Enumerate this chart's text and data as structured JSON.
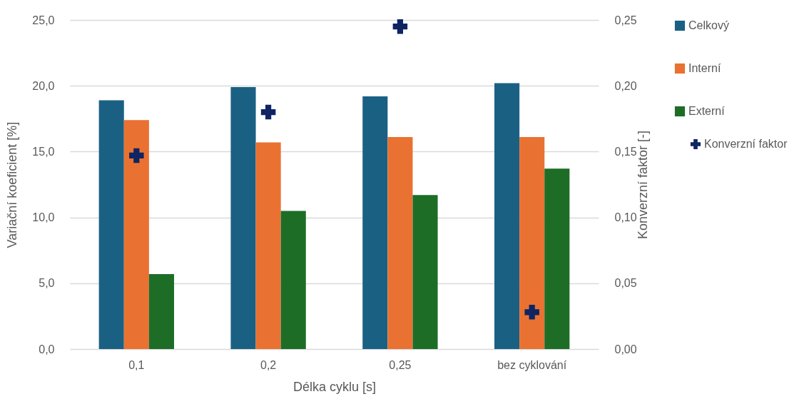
{
  "chart_data": {
    "type": "bar",
    "xlabel": "Délka cyklu [s]",
    "ylabel": "Variační koeficient [%]",
    "y2label": "Konverzní faktor [-]",
    "categories": [
      "0,1",
      "0,2",
      "0,25",
      "bez cyklování"
    ],
    "series": [
      {
        "name": "Celkový",
        "color": "#1a6083",
        "values": [
          18.9,
          19.9,
          19.2,
          20.2
        ]
      },
      {
        "name": "Interní",
        "color": "#e97132",
        "values": [
          17.4,
          15.7,
          16.1,
          16.1
        ]
      },
      {
        "name": "Externí",
        "color": "#1d6d27",
        "values": [
          5.7,
          10.5,
          11.7,
          13.7
        ]
      },
      {
        "name": "Konverzní faktor",
        "color": "#0e2463",
        "type": "scatter",
        "axis": "y2",
        "marker": "cross",
        "values": [
          0.147,
          0.18,
          0.245,
          0.028
        ]
      }
    ],
    "ylim": [
      0,
      25
    ],
    "yticks": [
      {
        "value": 0,
        "label": "0,0"
      },
      {
        "value": 5,
        "label": "5,0"
      },
      {
        "value": 10,
        "label": "10,0"
      },
      {
        "value": 15,
        "label": "15,0"
      },
      {
        "value": 20,
        "label": "20,0"
      },
      {
        "value": 25,
        "label": "25,0"
      }
    ],
    "y2lim": [
      0,
      0.25
    ],
    "y2ticks": [
      {
        "value": 0,
        "label": "0,00"
      },
      {
        "value": 0.05,
        "label": "0,05"
      },
      {
        "value": 0.1,
        "label": "0,10"
      },
      {
        "value": 0.15,
        "label": "0,15"
      },
      {
        "value": 0.2,
        "label": "0,20"
      },
      {
        "value": 0.25,
        "label": "0,25"
      }
    ],
    "grid": "y",
    "legend": "right"
  }
}
